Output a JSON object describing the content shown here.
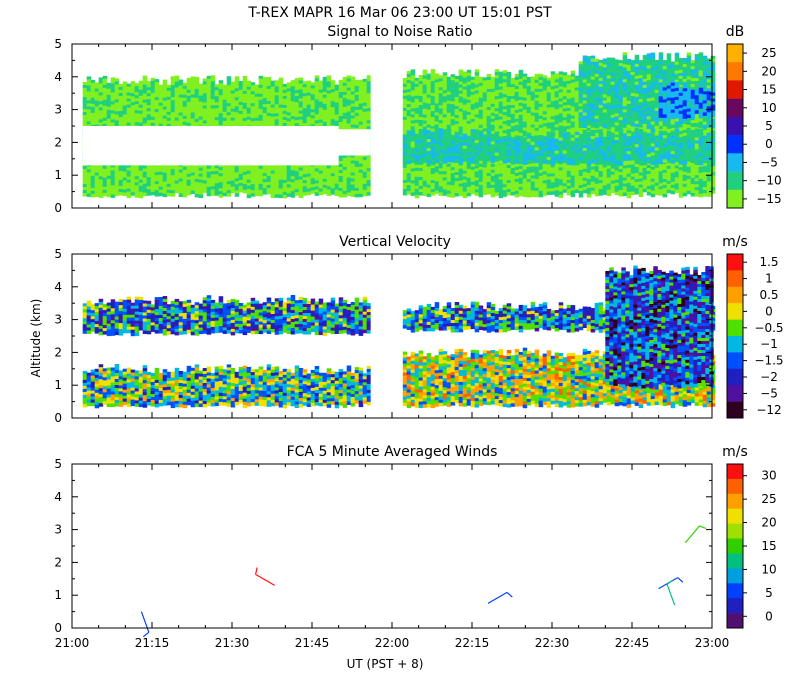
{
  "figure": {
    "title": "T-REX   MAPR 16 Mar 06   23:00 UT   15:01   PST",
    "xlabel": "UT  (PST + 8)",
    "ylabel": "Altitude (km)"
  },
  "chart_data": [
    {
      "type": "heatmap",
      "title": "Signal to Noise Ratio",
      "xlabel": "UT  (PST + 8)",
      "ylabel": "Altitude (km)",
      "x_range_utc": [
        "21:00",
        "23:00"
      ],
      "xlim_minutes": [
        0,
        120
      ],
      "ylim": [
        0,
        5
      ],
      "x_ticks": [
        "21:00",
        "21:15",
        "21:30",
        "21:45",
        "22:00",
        "22:15",
        "22:30",
        "22:45",
        "23:00"
      ],
      "y_ticks": [
        "0",
        "1",
        "2",
        "3",
        "4",
        "5"
      ],
      "colorbar": {
        "unit": "dB",
        "labels": [
          "25",
          "20",
          "15",
          "10",
          "5",
          "0",
          "−5",
          "−10",
          "−15"
        ],
        "colors": [
          "#ffb000",
          "#ff7800",
          "#e01800",
          "#6a0860",
          "#3a10b0",
          "#0030ff",
          "#18b8f0",
          "#20d080",
          "#80f020"
        ]
      },
      "data_gap_minutes": [
        56,
        62
      ],
      "layers": [
        {
          "t0": 2,
          "t1": 56,
          "h0": 0.4,
          "h1": 3.9,
          "value": -12
        },
        {
          "t0": 62,
          "t1": 120,
          "h0": 0.4,
          "h1": 4.1,
          "value": -11
        },
        {
          "t0": 62,
          "t1": 120,
          "h0": 1.4,
          "h1": 2.3,
          "value": -7
        },
        {
          "t0": 95,
          "t1": 120,
          "h0": 2.5,
          "h1": 4.6,
          "value": -8
        },
        {
          "t0": 110,
          "t1": 120,
          "h0": 2.8,
          "h1": 3.7,
          "value": -3
        }
      ],
      "gaps": [
        {
          "t0": 2,
          "t1": 50,
          "h0": 1.3,
          "h1": 2.5
        },
        {
          "t0": 34,
          "t1": 56,
          "h0": 1.6,
          "h1": 2.4
        }
      ]
    },
    {
      "type": "heatmap",
      "title": "Vertical Velocity",
      "xlabel": "UT  (PST + 8)",
      "ylabel": "Altitude (km)",
      "xlim_minutes": [
        0,
        120
      ],
      "ylim": [
        0,
        5
      ],
      "x_ticks": [
        "21:00",
        "21:15",
        "21:30",
        "21:45",
        "22:00",
        "22:15",
        "22:30",
        "22:45",
        "23:00"
      ],
      "y_ticks": [
        "0",
        "1",
        "2",
        "3",
        "4",
        "5"
      ],
      "colorbar": {
        "unit": "m/s",
        "labels": [
          "1.5",
          "1",
          "0.5",
          "0",
          "−0.5",
          "−1",
          "−1.5",
          "−2",
          "−5",
          "−12"
        ],
        "colors": [
          "#ff1010",
          "#ff6000",
          "#ffa000",
          "#f0e000",
          "#50e000",
          "#00b8e0",
          "#0050ff",
          "#2020c0",
          "#5010a0",
          "#300020"
        ]
      },
      "data_gap_minutes": [
        56,
        62
      ],
      "layers": [
        {
          "t0": 2,
          "t1": 56,
          "h0": 2.6,
          "h1": 3.6,
          "value": -1
        },
        {
          "t0": 2,
          "t1": 56,
          "h0": 0.4,
          "h1": 1.5,
          "value": -0.5
        },
        {
          "t0": 62,
          "t1": 120,
          "h0": 2.7,
          "h1": 3.4,
          "value": -1
        },
        {
          "t0": 62,
          "t1": 120,
          "h0": 0.4,
          "h1": 2.0,
          "value": 0
        },
        {
          "t0": 100,
          "t1": 120,
          "h0": 1.0,
          "h1": 4.5,
          "value": -1.5
        }
      ]
    },
    {
      "type": "scatter",
      "title": "FCA 5 Minute Averaged Winds",
      "xlabel": "UT  (PST + 8)",
      "ylabel": "Altitude (km)",
      "xlim_minutes": [
        0,
        120
      ],
      "ylim": [
        0,
        5
      ],
      "x_ticks": [
        "21:00",
        "21:15",
        "21:30",
        "21:45",
        "22:00",
        "22:15",
        "22:30",
        "22:45",
        "23:00"
      ],
      "y_ticks": [
        "0",
        "1",
        "2",
        "3",
        "4",
        "5"
      ],
      "colorbar": {
        "unit": "m/s",
        "labels": [
          "30",
          "25",
          "20",
          "15",
          "10",
          "5",
          "0"
        ],
        "colors": [
          "#ff1010",
          "#ff6000",
          "#ffa000",
          "#f0e000",
          "#a0e000",
          "#30d000",
          "#00c080",
          "#00a0e0",
          "#0040ff",
          "#2020c0",
          "#501070"
        ]
      },
      "wind_barbs": [
        {
          "minute": 13,
          "altitude_km": 0.5,
          "speed": 5,
          "direction_deg": 160
        },
        {
          "minute": 38,
          "altitude_km": 1.3,
          "speed": 30,
          "direction_deg": 300
        },
        {
          "minute": 78,
          "altitude_km": 0.75,
          "speed": 5,
          "direction_deg": 60
        },
        {
          "minute": 110,
          "altitude_km": 1.2,
          "speed": 7,
          "direction_deg": 60
        },
        {
          "minute": 113,
          "altitude_km": 0.7,
          "speed": 12,
          "direction_deg": 340
        },
        {
          "minute": 115,
          "altitude_km": 2.6,
          "speed": 16,
          "direction_deg": 40
        }
      ]
    }
  ]
}
